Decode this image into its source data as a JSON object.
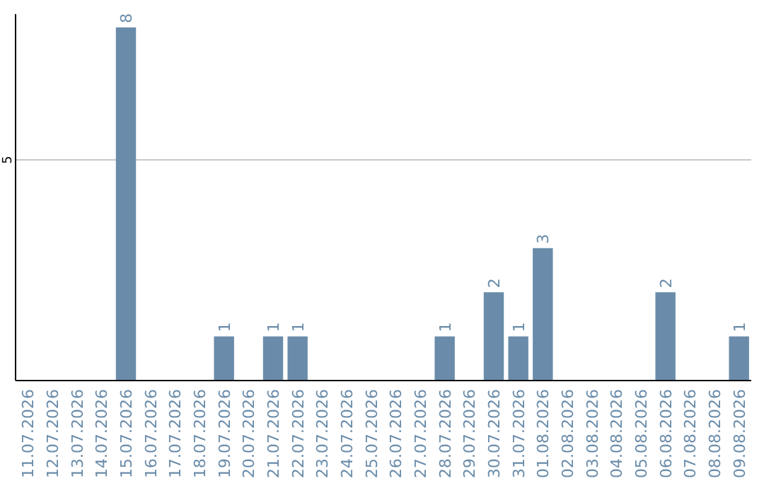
{
  "chart_data": {
    "type": "bar",
    "categories": [
      "11.07.2026",
      "12.07.2026",
      "13.07.2026",
      "14.07.2026",
      "15.07.2026",
      "16.07.2026",
      "17.07.2026",
      "18.07.2026",
      "19.07.2026",
      "20.07.2026",
      "21.07.2026",
      "22.07.2026",
      "23.07.2026",
      "24.07.2026",
      "25.07.2026",
      "26.07.2026",
      "27.07.2026",
      "28.07.2026",
      "29.07.2026",
      "30.07.2026",
      "31.07.2026",
      "01.08.2026",
      "02.08.2026",
      "03.08.2026",
      "04.08.2026",
      "05.08.2026",
      "06.08.2026",
      "07.08.2026",
      "08.08.2026",
      "09.08.2026"
    ],
    "values": [
      0,
      0,
      0,
      0,
      8,
      0,
      0,
      0,
      1,
      0,
      1,
      1,
      0,
      0,
      0,
      0,
      0,
      1,
      0,
      2,
      1,
      3,
      0,
      0,
      0,
      0,
      2,
      0,
      0,
      1
    ],
    "value_labels": [
      null,
      null,
      null,
      null,
      "8",
      null,
      null,
      null,
      "1",
      null,
      "1",
      "1",
      null,
      null,
      null,
      null,
      null,
      "1",
      null,
      "2",
      "1",
      "3",
      null,
      null,
      null,
      null,
      "2",
      null,
      null,
      "1"
    ],
    "color": "#6a8caa",
    "ylim": [
      0,
      8.3
    ],
    "yticks": [
      5
    ],
    "grid": "y"
  }
}
